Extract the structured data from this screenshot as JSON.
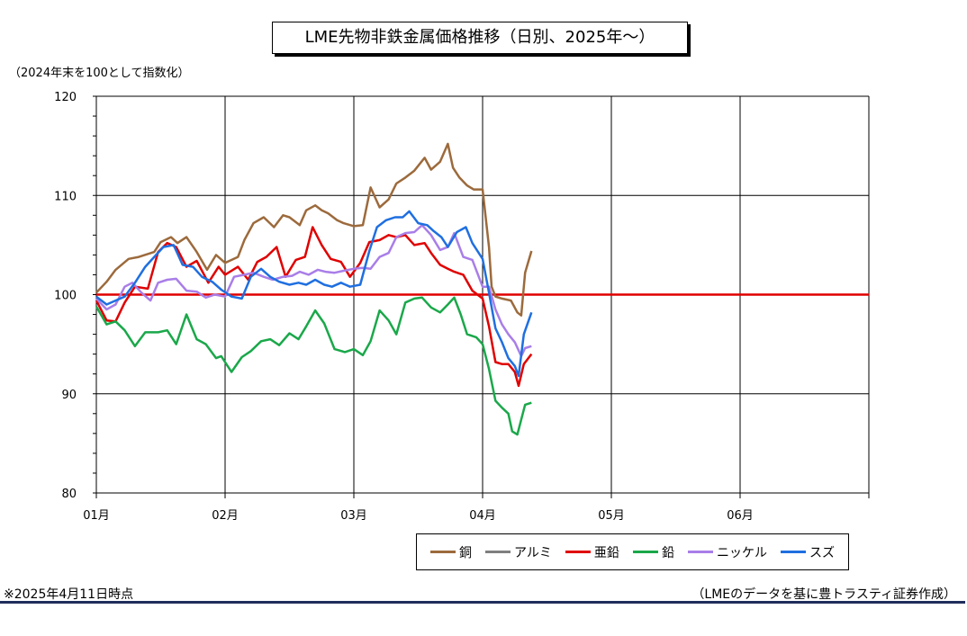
{
  "chart_data": {
    "type": "line",
    "title": "LME先物非鉄金属価格推移（日別、2025年～）",
    "ylabel": "（2024年末を100として指数化）",
    "ylim": [
      80,
      120
    ],
    "yticks": [
      80,
      90,
      100,
      110,
      120
    ],
    "x_range_months": [
      1,
      7
    ],
    "x_tick_labels": [
      "01月",
      "02月",
      "03月",
      "04月",
      "05月",
      "06月"
    ],
    "grid": true,
    "legend_position": "bottom-right",
    "reference_line": {
      "value": 100,
      "color": "#e00000"
    },
    "series": [
      {
        "name": "銅",
        "color": "#9c6a3c",
        "x": [
          1.0,
          1.08,
          1.15,
          1.25,
          1.33,
          1.45,
          1.5,
          1.58,
          1.63,
          1.7,
          1.78,
          1.86,
          1.93,
          2.0,
          2.1,
          2.15,
          2.22,
          2.3,
          2.38,
          2.45,
          2.5,
          2.58,
          2.63,
          2.7,
          2.75,
          2.8,
          2.87,
          2.92,
          3.0,
          3.07,
          3.13,
          3.2,
          3.27,
          3.33,
          3.4,
          3.47,
          3.55,
          3.6,
          3.67,
          3.73,
          3.77,
          3.82,
          3.88,
          3.93,
          4.0,
          4.05,
          4.07,
          4.1,
          4.15,
          4.22,
          4.27,
          4.3,
          4.33,
          4.38
        ],
        "values": [
          100.2,
          101.3,
          102.5,
          103.6,
          103.8,
          104.3,
          105.3,
          105.8,
          105.2,
          105.8,
          104.3,
          102.5,
          104.0,
          103.2,
          103.8,
          105.5,
          107.2,
          107.8,
          106.8,
          108.0,
          107.8,
          107.0,
          108.5,
          109.0,
          108.5,
          108.2,
          107.5,
          107.2,
          106.9,
          107.0,
          110.8,
          108.8,
          109.6,
          111.2,
          111.8,
          112.5,
          113.8,
          112.6,
          113.4,
          115.2,
          112.8,
          111.8,
          111.0,
          110.6,
          110.6,
          104.8,
          100.8,
          99.8,
          99.6,
          99.4,
          98.2,
          97.9,
          102.2,
          104.4
        ]
      },
      {
        "name": "アルミ",
        "color": "#7f7f7f",
        "values": []
      },
      {
        "name": "亜鉛",
        "color": "#e00000",
        "x": [
          1.0,
          1.08,
          1.15,
          1.22,
          1.3,
          1.4,
          1.48,
          1.55,
          1.62,
          1.7,
          1.78,
          1.87,
          1.95,
          2.0,
          2.1,
          2.18,
          2.25,
          2.32,
          2.4,
          2.47,
          2.55,
          2.62,
          2.68,
          2.75,
          2.82,
          2.9,
          2.97,
          3.05,
          3.12,
          3.2,
          3.27,
          3.33,
          3.4,
          3.47,
          3.55,
          3.6,
          3.67,
          3.73,
          3.78,
          3.85,
          3.92,
          4.0,
          4.05,
          4.1,
          4.15,
          4.2,
          4.25,
          4.28,
          4.32,
          4.38
        ],
        "values": [
          99.4,
          97.4,
          97.3,
          99.2,
          100.8,
          100.6,
          104.3,
          105.2,
          104.8,
          102.8,
          103.4,
          101.2,
          102.8,
          102.0,
          102.8,
          101.5,
          103.3,
          103.8,
          104.8,
          101.8,
          103.5,
          103.8,
          106.8,
          105.0,
          103.6,
          103.3,
          101.8,
          103.2,
          105.3,
          105.5,
          106.0,
          105.8,
          106.0,
          105.0,
          105.2,
          104.2,
          103.0,
          102.6,
          102.3,
          102.0,
          100.4,
          99.6,
          96.8,
          93.2,
          93.0,
          93.0,
          92.2,
          90.8,
          93.0,
          94.0
        ]
      },
      {
        "name": "鉛",
        "color": "#1aa84a",
        "x": [
          1.0,
          1.08,
          1.15,
          1.22,
          1.3,
          1.38,
          1.48,
          1.55,
          1.62,
          1.7,
          1.78,
          1.85,
          1.93,
          1.97,
          2.05,
          2.13,
          2.2,
          2.28,
          2.35,
          2.42,
          2.5,
          2.57,
          2.63,
          2.7,
          2.77,
          2.85,
          2.93,
          3.0,
          3.07,
          3.13,
          3.2,
          3.27,
          3.33,
          3.4,
          3.47,
          3.53,
          3.6,
          3.67,
          3.73,
          3.78,
          3.83,
          3.88,
          3.95,
          4.0,
          4.05,
          4.1,
          4.15,
          4.2,
          4.23,
          4.27,
          4.3,
          4.33,
          4.38
        ],
        "values": [
          98.8,
          97.0,
          97.3,
          96.4,
          94.8,
          96.2,
          96.2,
          96.4,
          95.0,
          98.0,
          95.5,
          95.0,
          93.6,
          93.8,
          92.2,
          93.7,
          94.3,
          95.3,
          95.5,
          94.9,
          96.1,
          95.5,
          96.8,
          98.4,
          97.1,
          94.5,
          94.2,
          94.5,
          93.9,
          95.3,
          98.4,
          97.4,
          96.0,
          99.2,
          99.6,
          99.7,
          98.7,
          98.2,
          99.0,
          99.7,
          98.0,
          96.0,
          95.7,
          95.0,
          92.5,
          89.3,
          88.6,
          88.0,
          86.2,
          85.9,
          87.4,
          88.9,
          89.1
        ]
      },
      {
        "name": "ニッケル",
        "color": "#a97ee8",
        "x": [
          1.0,
          1.08,
          1.15,
          1.22,
          1.28,
          1.35,
          1.42,
          1.48,
          1.55,
          1.62,
          1.7,
          1.78,
          1.85,
          1.92,
          2.0,
          2.07,
          2.15,
          2.22,
          2.3,
          2.37,
          2.45,
          2.52,
          2.58,
          2.65,
          2.72,
          2.78,
          2.85,
          2.92,
          3.0,
          3.07,
          3.13,
          3.2,
          3.27,
          3.33,
          3.4,
          3.47,
          3.53,
          3.6,
          3.67,
          3.73,
          3.78,
          3.85,
          3.92,
          4.0,
          4.05,
          4.1,
          4.15,
          4.2,
          4.25,
          4.3,
          4.33,
          4.38
        ],
        "values": [
          99.6,
          98.5,
          99.0,
          100.8,
          101.2,
          100.2,
          99.4,
          101.2,
          101.5,
          101.6,
          100.4,
          100.3,
          99.7,
          100.0,
          99.8,
          101.8,
          102.0,
          102.2,
          101.8,
          101.5,
          101.8,
          101.9,
          102.3,
          102.0,
          102.5,
          102.3,
          102.2,
          102.4,
          102.6,
          102.7,
          102.6,
          103.8,
          104.2,
          105.8,
          106.2,
          106.3,
          107.0,
          106.0,
          104.5,
          104.8,
          106.2,
          103.8,
          103.5,
          100.8,
          100.8,
          98.5,
          97.0,
          96.0,
          95.2,
          93.8,
          94.6,
          94.8
        ]
      },
      {
        "name": "スズ",
        "color": "#1f6fe0",
        "x": [
          1.0,
          1.08,
          1.15,
          1.22,
          1.3,
          1.38,
          1.45,
          1.52,
          1.6,
          1.67,
          1.75,
          1.82,
          1.9,
          1.97,
          2.05,
          2.13,
          2.2,
          2.28,
          2.35,
          2.42,
          2.5,
          2.57,
          2.63,
          2.7,
          2.77,
          2.83,
          2.9,
          2.97,
          3.05,
          3.12,
          3.18,
          3.25,
          3.32,
          3.38,
          3.43,
          3.5,
          3.57,
          3.62,
          3.68,
          3.73,
          3.8,
          3.87,
          3.92,
          4.0,
          4.05,
          4.1,
          4.15,
          4.2,
          4.25,
          4.28,
          4.32,
          4.38
        ],
        "values": [
          99.8,
          99.0,
          99.4,
          99.8,
          101.2,
          102.8,
          103.8,
          104.8,
          105.0,
          103.0,
          102.8,
          101.8,
          101.3,
          100.5,
          99.8,
          99.6,
          101.8,
          102.6,
          101.8,
          101.3,
          101.0,
          101.2,
          101.0,
          101.5,
          101.0,
          100.8,
          101.2,
          100.8,
          101.0,
          104.4,
          106.8,
          107.5,
          107.8,
          107.8,
          108.4,
          107.2,
          107.0,
          106.4,
          105.8,
          104.8,
          106.3,
          106.8,
          105.2,
          103.6,
          100.2,
          96.6,
          95.2,
          93.6,
          92.8,
          91.8,
          96.0,
          98.2
        ]
      }
    ]
  },
  "notes": {
    "timestamp": "※2025年4月11日時点",
    "source": "（LMEのデータを基に豊トラスティ証券作成）"
  }
}
